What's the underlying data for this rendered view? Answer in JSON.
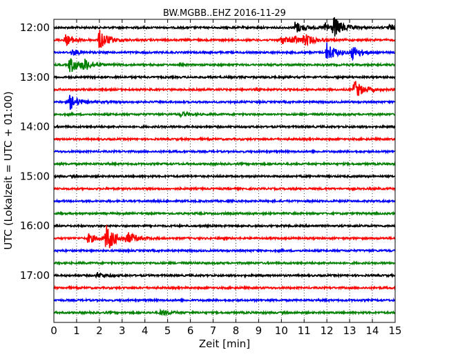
{
  "chart_data": {
    "type": "line",
    "title": "BW.MGBB..EHZ 2016-11-29",
    "xlabel": "Zeit  [min]",
    "ylabel": "UTC (Lokalzeit = UTC + 01:00)",
    "xlim": [
      0,
      15
    ],
    "x_ticks": [
      "0",
      "1",
      "2",
      "3",
      "4",
      "5",
      "6",
      "7",
      "8",
      "9",
      "10",
      "11",
      "12",
      "13",
      "14",
      "15"
    ],
    "y_tick_labels": [
      "12:00",
      "13:00",
      "14:00",
      "15:00",
      "16:00",
      "17:00"
    ],
    "grid": "vertical dotted at each minute",
    "trace_colors": [
      "#000000",
      "#ff0000",
      "#0000ff",
      "#008000"
    ],
    "traces": [
      {
        "start": "12:00",
        "color": "#000000",
        "events": [
          {
            "t": 10.6,
            "amp": 9
          },
          {
            "t": 11.9,
            "amp": 7
          },
          {
            "t": 12.3,
            "amp": 14
          },
          {
            "t": 14.7,
            "amp": 4
          }
        ]
      },
      {
        "start": "12:15",
        "color": "#ff0000",
        "events": [
          {
            "t": 0.5,
            "amp": 8
          },
          {
            "t": 2.0,
            "amp": 15
          },
          {
            "t": 10.0,
            "amp": 6
          },
          {
            "t": 10.5,
            "amp": 5
          },
          {
            "t": 11.0,
            "amp": 8
          }
        ]
      },
      {
        "start": "12:30",
        "color": "#0000ff",
        "events": [
          {
            "t": 0.8,
            "amp": 4
          },
          {
            "t": 12.0,
            "amp": 14
          },
          {
            "t": 13.1,
            "amp": 10
          }
        ]
      },
      {
        "start": "12:45",
        "color": "#008000",
        "events": [
          {
            "t": 0.7,
            "amp": 12
          },
          {
            "t": 1.3,
            "amp": 8
          }
        ]
      },
      {
        "start": "13:00",
        "color": "#000000",
        "events": []
      },
      {
        "start": "13:15",
        "color": "#ff0000",
        "events": [
          {
            "t": 13.2,
            "amp": 14
          }
        ]
      },
      {
        "start": "13:30",
        "color": "#0000ff",
        "events": [
          {
            "t": 0.7,
            "amp": 11
          }
        ]
      },
      {
        "start": "13:45",
        "color": "#008000",
        "events": [
          {
            "t": 5.6,
            "amp": 3
          }
        ]
      },
      {
        "start": "14:00",
        "color": "#000000",
        "events": []
      },
      {
        "start": "14:15",
        "color": "#ff0000",
        "events": []
      },
      {
        "start": "14:30",
        "color": "#0000ff",
        "events": []
      },
      {
        "start": "14:45",
        "color": "#008000",
        "events": []
      },
      {
        "start": "15:00",
        "color": "#000000",
        "events": []
      },
      {
        "start": "15:15",
        "color": "#ff0000",
        "events": []
      },
      {
        "start": "15:30",
        "color": "#0000ff",
        "events": []
      },
      {
        "start": "15:45",
        "color": "#008000",
        "events": []
      },
      {
        "start": "16:00",
        "color": "#000000",
        "events": []
      },
      {
        "start": "16:15",
        "color": "#ff0000",
        "events": [
          {
            "t": 1.5,
            "amp": 7
          },
          {
            "t": 2.3,
            "amp": 20
          },
          {
            "t": 3.2,
            "amp": 8
          }
        ]
      },
      {
        "start": "16:30",
        "color": "#0000ff",
        "events": []
      },
      {
        "start": "16:45",
        "color": "#008000",
        "events": []
      },
      {
        "start": "17:00",
        "color": "#000000",
        "events": [
          {
            "t": 1.9,
            "amp": 4
          }
        ]
      },
      {
        "start": "17:15",
        "color": "#ff0000",
        "events": []
      },
      {
        "start": "17:30",
        "color": "#0000ff",
        "events": []
      },
      {
        "start": "17:45",
        "color": "#008000",
        "events": [
          {
            "t": 4.7,
            "amp": 4
          }
        ]
      }
    ]
  }
}
